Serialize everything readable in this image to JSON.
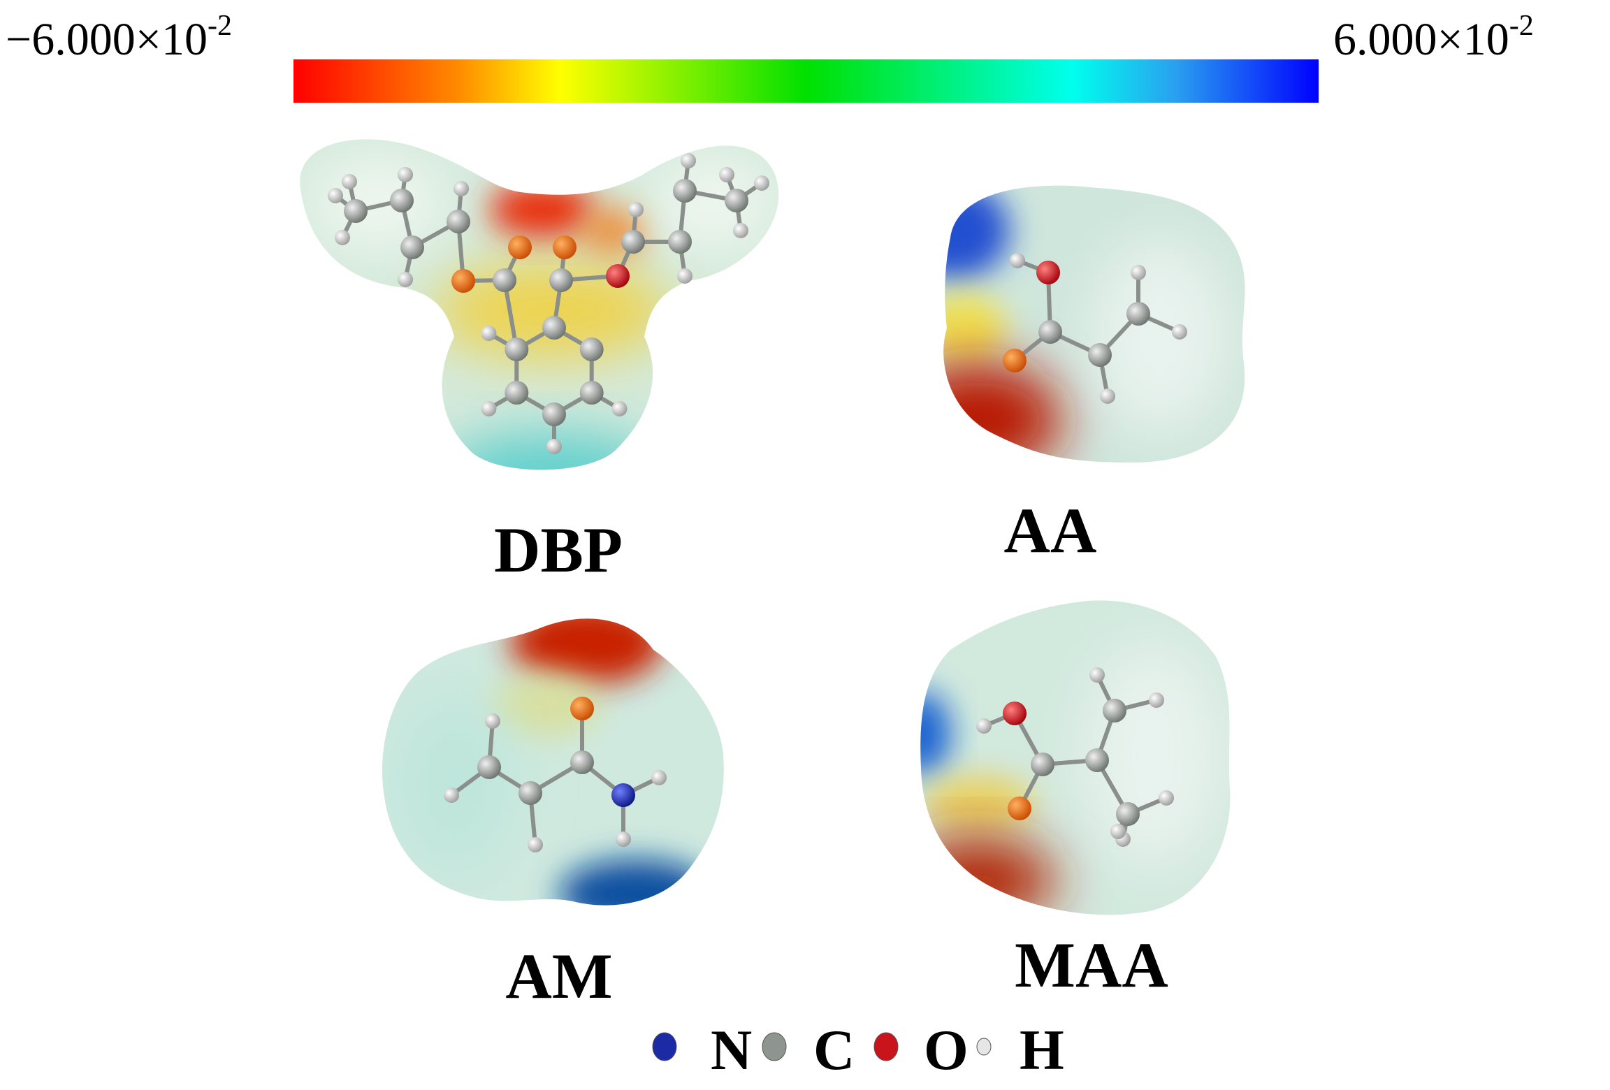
{
  "colorbar": {
    "min_label": "−6.000×10",
    "min_exponent": "-2",
    "max_label": "6.000×10",
    "max_exponent": "-2"
  },
  "molecules": [
    {
      "label": "DBP"
    },
    {
      "label": "AA"
    },
    {
      "label": "AM"
    },
    {
      "label": "MAA"
    }
  ],
  "legend": [
    {
      "label": "N",
      "color": "#1c2aa6"
    },
    {
      "label": "C",
      "color": "#8e9490"
    },
    {
      "label": "O",
      "color": "#c8141a"
    },
    {
      "label": "H",
      "color": "#e6e6e6"
    }
  ]
}
